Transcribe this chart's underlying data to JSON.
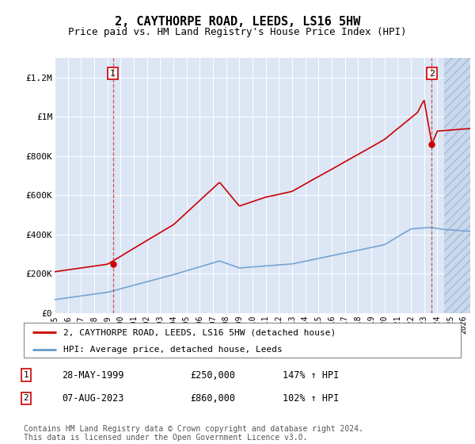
{
  "title": "2, CAYTHORPE ROAD, LEEDS, LS16 5HW",
  "subtitle": "Price paid vs. HM Land Registry's House Price Index (HPI)",
  "title_fontsize": 11,
  "subtitle_fontsize": 9,
  "ylim": [
    0,
    1300000
  ],
  "xlim_start": 1995.0,
  "xlim_end": 2026.5,
  "yticks": [
    0,
    200000,
    400000,
    600000,
    800000,
    1000000,
    1200000
  ],
  "ytick_labels": [
    "£0",
    "£200K",
    "£400K",
    "£600K",
    "£800K",
    "£1M",
    "£1.2M"
  ],
  "xtick_years": [
    1995,
    1996,
    1997,
    1998,
    1999,
    2000,
    2001,
    2002,
    2003,
    2004,
    2005,
    2006,
    2007,
    2008,
    2009,
    2010,
    2011,
    2012,
    2013,
    2014,
    2015,
    2016,
    2017,
    2018,
    2019,
    2020,
    2021,
    2022,
    2023,
    2024,
    2025,
    2026
  ],
  "plot_bg_color": "#dce6f5",
  "grid_color": "#ffffff",
  "hpi_color": "#6699cc",
  "price_color": "#cc0000",
  "sale1_date": 1999.41,
  "sale1_price": 250000,
  "sale1_label": "1",
  "sale2_date": 2023.59,
  "sale2_price": 860000,
  "sale2_label": "2",
  "future_shade_start": 2024.5,
  "legend_line1": "2, CAYTHORPE ROAD, LEEDS, LS16 5HW (detached house)",
  "legend_line2": "HPI: Average price, detached house, Leeds",
  "table_row1": [
    "1",
    "28-MAY-1999",
    "£250,000",
    "147% ↑ HPI"
  ],
  "table_row2": [
    "2",
    "07-AUG-2023",
    "£860,000",
    "102% ↑ HPI"
  ],
  "footer": "Contains HM Land Registry data © Crown copyright and database right 2024.\nThis data is licensed under the Open Government Licence v3.0."
}
